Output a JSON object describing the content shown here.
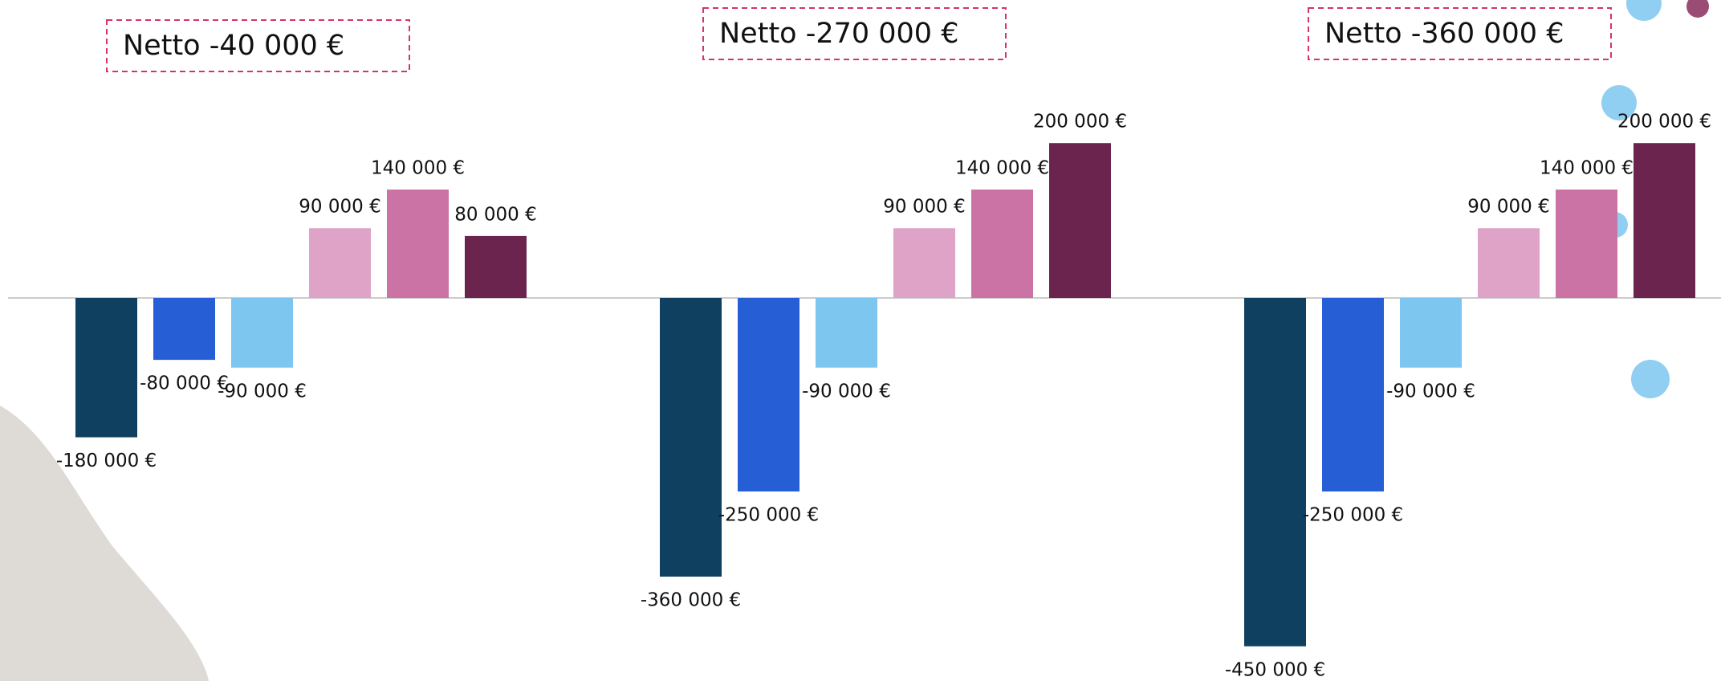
{
  "chart_data": [
    {
      "type": "bar",
      "title": "Netto -40 000 €",
      "values": [
        -180000,
        -80000,
        -90000,
        90000,
        140000,
        80000
      ],
      "value_labels": [
        "-180 000 €",
        "-80 000 €",
        "-90 000 €",
        "90 000 €",
        "140 000 €",
        "80 000 €"
      ],
      "colors": [
        "#10405f",
        "#265ed6",
        "#7dc6f0",
        "#dea3c6",
        "#cc73a5",
        "#6b244d"
      ]
    },
    {
      "type": "bar",
      "title": "Netto -270 000 €",
      "values": [
        -360000,
        -250000,
        -90000,
        90000,
        140000,
        200000
      ],
      "value_labels": [
        "-360 000 €",
        "-250 000 €",
        "-90 000 €",
        "90 000 €",
        "140 000 €",
        "200 000 €"
      ],
      "colors": [
        "#10405f",
        "#265ed6",
        "#7dc6f0",
        "#dea3c6",
        "#cc73a5",
        "#6b244d"
      ]
    },
    {
      "type": "bar",
      "title": "Netto -360 000 €",
      "values": [
        -450000,
        -250000,
        -90000,
        90000,
        140000,
        200000
      ],
      "value_labels": [
        "-450 000 €",
        "-250 000 €",
        "-90 000 €",
        "90 000 €",
        "140 000 €",
        "200 000 €"
      ],
      "colors": [
        "#10405f",
        "#265ed6",
        "#7dc6f0",
        "#dea3c6",
        "#cc73a5",
        "#6b244d"
      ]
    }
  ]
}
